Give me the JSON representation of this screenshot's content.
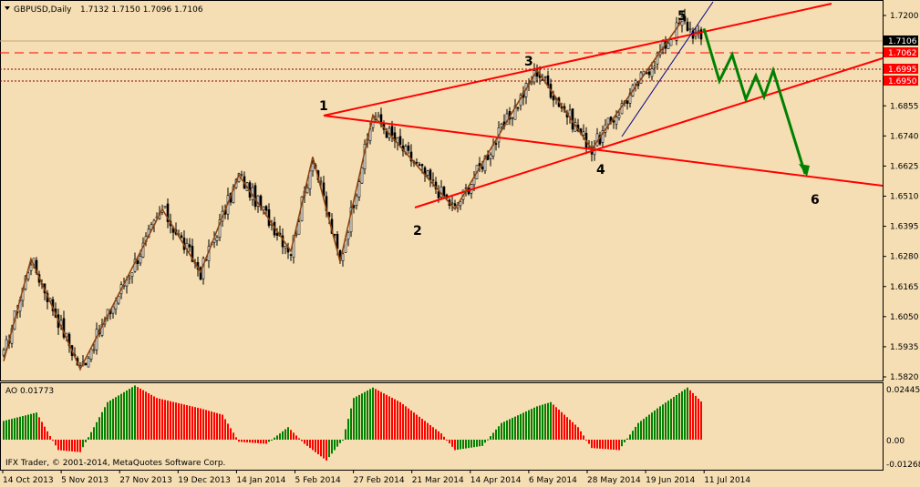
{
  "chart_data": {
    "type": "candlestick",
    "header": {
      "symbol": "GBPUSD,Daily",
      "ohlc": "1.7132 1.7150 1.7096 1.7106"
    },
    "price_axis": {
      "ticks": [
        "1.7200",
        "1.6855",
        "1.6740",
        "1.6625",
        "1.6510",
        "1.6395",
        "1.6280",
        "1.6165",
        "1.6050",
        "1.5935",
        "1.5820"
      ],
      "ylim": [
        1.58,
        1.724
      ]
    },
    "price_tags": [
      {
        "value": "1.7106",
        "bg": "#000000",
        "fg": "#FFFFFF",
        "line": "none"
      },
      {
        "value": "1.7062",
        "bg": "#FF0000",
        "fg": "#FFFFFF",
        "line": "dashed"
      },
      {
        "value": "1.6995",
        "bg": "#FF0000",
        "fg": "#FFFFFF",
        "line": "dotted"
      },
      {
        "value": "1.6950",
        "bg": "#FF0000",
        "fg": "#FFFFFF",
        "line": "dotted"
      }
    ],
    "date_axis": [
      "14 Oct 2013",
      "5 Nov 2013",
      "27 Nov 2013",
      "19 Dec 2013",
      "14 Jan 2014",
      "5 Feb 2014",
      "27 Feb 2014",
      "21 Mar 2014",
      "14 Apr 2014",
      "6 May 2014",
      "28 May 2014",
      "19 Jun 2014",
      "11 Jul 2014"
    ],
    "wave_points": [
      {
        "label": "1",
        "price": 1.682
      },
      {
        "label": "2",
        "price": 1.646
      },
      {
        "label": "3",
        "price": 1.699
      },
      {
        "label": "4",
        "price": 1.669
      },
      {
        "label": "5",
        "price": 1.718
      },
      {
        "label": "6",
        "price": 1.659
      }
    ],
    "zigzag": [
      1.588,
      1.627,
      1.585,
      1.646,
      1.622,
      1.659,
      1.63,
      1.666,
      1.626,
      1.682,
      1.646,
      1.699,
      1.669,
      1.718
    ],
    "forecast": [
      1.715,
      1.695,
      1.705,
      1.688,
      1.697,
      1.689,
      1.699,
      1.6595
    ],
    "oscillator": {
      "title": "AO 0.01773",
      "ticks": [
        "0.02445",
        "0.00",
        "-0.01268"
      ],
      "ylim": [
        -0.014,
        0.026
      ],
      "up_color": "#008000",
      "down_color": "#FF0000"
    },
    "copyright": "IFX Trader, © 2001-2014, MetaQuotes Software Corp.",
    "colors": {
      "background": "#F5DEB3",
      "bull_candle": "#FFFFFF",
      "bear_candle": "#000000",
      "channel": "#FF0000",
      "zigzag": "#8B4513",
      "trendline": "#00008B",
      "forecast": "#008000"
    }
  }
}
